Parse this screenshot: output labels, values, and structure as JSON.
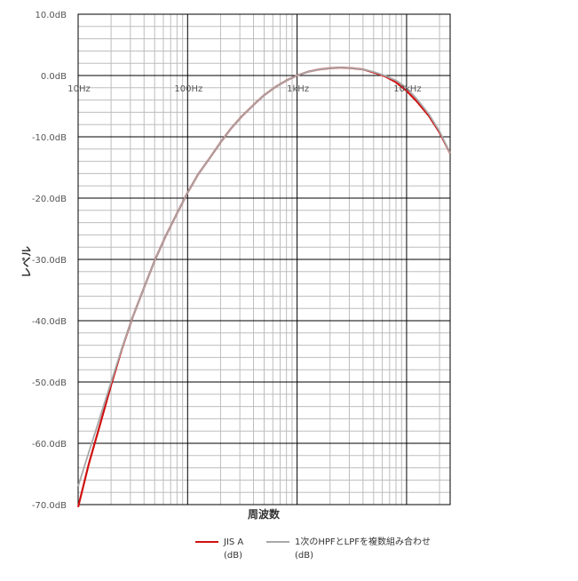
{
  "chart_data": {
    "type": "line",
    "title": "",
    "xlabel": "周波数",
    "ylabel": "レベル",
    "x_scale": "log",
    "xlim": [
      10,
      25000
    ],
    "ylim": [
      -70,
      10
    ],
    "grid": true,
    "legend_position": "bottom",
    "y_ticks": [
      {
        "value": 10,
        "label": "10.0dB"
      },
      {
        "value": 0,
        "label": "0.0dB"
      },
      {
        "value": -10,
        "label": "-10.0dB"
      },
      {
        "value": -20,
        "label": "-20.0dB"
      },
      {
        "value": -30,
        "label": "-30.0dB"
      },
      {
        "value": -40,
        "label": "-40.0dB"
      },
      {
        "value": -50,
        "label": "-50.0dB"
      },
      {
        "value": -60,
        "label": "-60.0dB"
      },
      {
        "value": -70,
        "label": "-70.0dB"
      }
    ],
    "x_ticks": [
      {
        "value": 10,
        "label": "10Hz"
      },
      {
        "value": 100,
        "label": "100Hz"
      },
      {
        "value": 1000,
        "label": "1kHz"
      },
      {
        "value": 10000,
        "label": "10kHz"
      }
    ],
    "series": [
      {
        "name_lines": [
          "JIS A",
          "(dB)"
        ],
        "color": "#d01010",
        "x": [
          10,
          12.5,
          16,
          20,
          25,
          31.5,
          40,
          50,
          63,
          80,
          100,
          125,
          160,
          200,
          250,
          315,
          400,
          500,
          630,
          800,
          1000,
          1250,
          1600,
          2000,
          2500,
          3150,
          4000,
          5000,
          6300,
          8000,
          10000,
          12500,
          16000,
          20000,
          25000
        ],
        "y": [
          -70.4,
          -63.4,
          -56.7,
          -50.5,
          -44.7,
          -39.4,
          -34.6,
          -30.2,
          -26.2,
          -22.5,
          -19.1,
          -16.1,
          -13.4,
          -10.9,
          -8.6,
          -6.6,
          -4.8,
          -3.2,
          -1.9,
          -0.8,
          0.0,
          0.6,
          1.0,
          1.2,
          1.3,
          1.2,
          1.0,
          0.5,
          -0.1,
          -1.1,
          -2.5,
          -4.3,
          -6.6,
          -9.3,
          -12.7
        ]
      },
      {
        "name_lines": [
          "1次のHPFとLPFを複数組み合わせ",
          "(dB)"
        ],
        "color": "#a8a8a8",
        "x": [
          10,
          12.5,
          16,
          20,
          25,
          31.5,
          40,
          50,
          63,
          80,
          100,
          125,
          160,
          200,
          250,
          315,
          400,
          500,
          630,
          800,
          1000,
          1250,
          1600,
          2000,
          2500,
          3150,
          4000,
          5000,
          6300,
          8000,
          10000,
          12500,
          16000,
          20000,
          25000
        ],
        "y": [
          -67.0,
          -61.5,
          -55.5,
          -50.0,
          -44.6,
          -39.4,
          -34.6,
          -30.2,
          -26.2,
          -22.5,
          -19.1,
          -16.1,
          -13.4,
          -10.9,
          -8.6,
          -6.6,
          -4.8,
          -3.2,
          -1.9,
          -0.8,
          0.0,
          0.6,
          1.0,
          1.2,
          1.3,
          1.2,
          1.0,
          0.6,
          0.0,
          -0.8,
          -2.0,
          -3.9,
          -6.3,
          -9.1,
          -12.7
        ]
      }
    ]
  }
}
